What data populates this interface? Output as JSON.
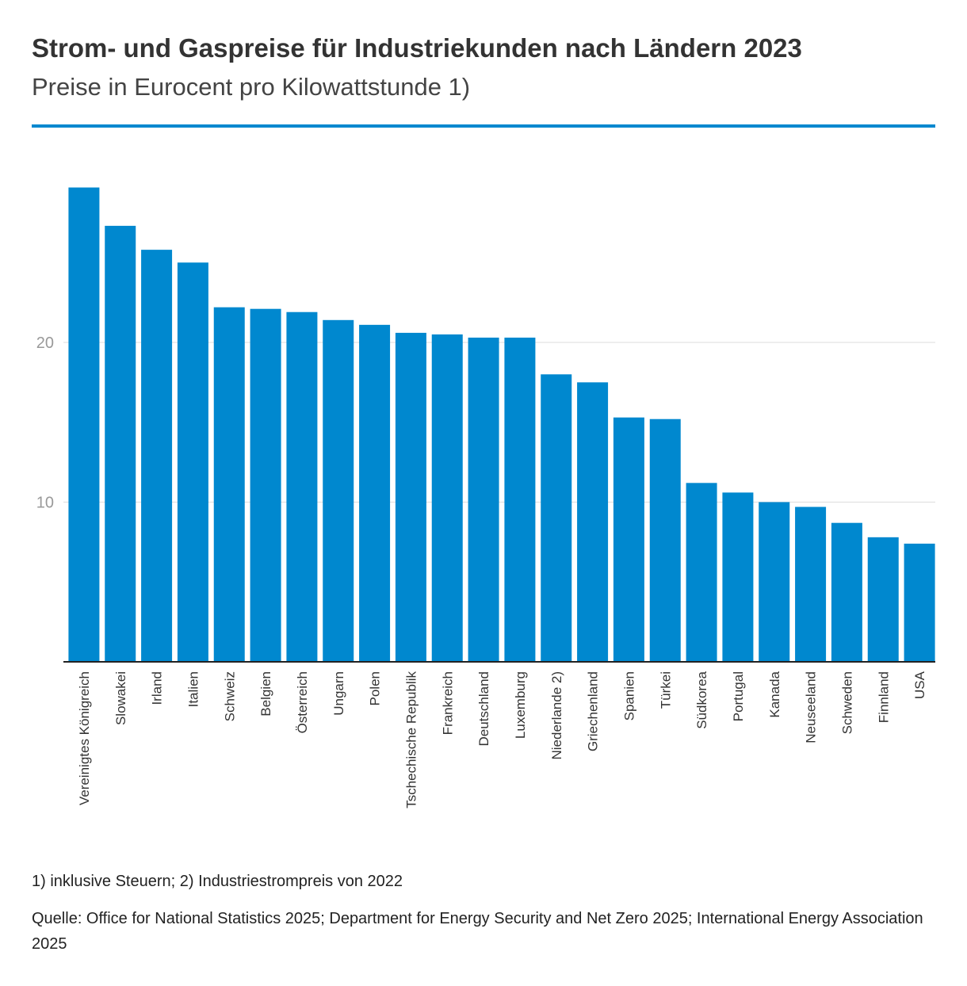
{
  "header": {
    "title": "Strom- und Gaspreise für Industriekunden nach Ländern 2023",
    "subtitle": "Preise in Eurocent pro Kilowattstunde 1)"
  },
  "footnotes": {
    "note": "1) inklusive Steuern; 2) Industriestrompreis von 2022",
    "source": "Quelle: Office for National Statistics 2025; Department for Energy Security and Net Zero 2025; International Energy Association 2025"
  },
  "colors": {
    "bar": "#0088cf",
    "accent_rule": "#0088cf",
    "gridline": "#dddddd",
    "axis": "#222222",
    "tick_label": "#999999"
  },
  "chart_data": {
    "type": "bar",
    "title": "Strom- und Gaspreise für Industriekunden nach Ländern 2023",
    "subtitle": "Preise in Eurocent pro Kilowattstunde 1)",
    "xlabel": "",
    "ylabel": "",
    "ylim": [
      0,
      30
    ],
    "yticks": [
      10,
      20
    ],
    "grid": true,
    "categories": [
      "Vereinigtes Königreich",
      "Slowakei",
      "Irland",
      "Italien",
      "Schweiz",
      "Belgien",
      "Österreich",
      "Ungarn",
      "Polen",
      "Tschechische Republik",
      "Frankreich",
      "Deutschland",
      "Luxemburg",
      "Niederlande 2)",
      "Griechenland",
      "Spanien",
      "Türkei",
      "Südkorea",
      "Portugal",
      "Kanada",
      "Neuseeland",
      "Schweden",
      "Finnland",
      "USA"
    ],
    "values": [
      29.7,
      27.3,
      25.8,
      25.0,
      22.2,
      22.1,
      21.9,
      21.4,
      21.1,
      20.6,
      20.5,
      20.3,
      20.3,
      18.0,
      17.5,
      15.3,
      15.2,
      11.2,
      10.6,
      10.0,
      9.7,
      8.7,
      7.8,
      7.4
    ]
  }
}
